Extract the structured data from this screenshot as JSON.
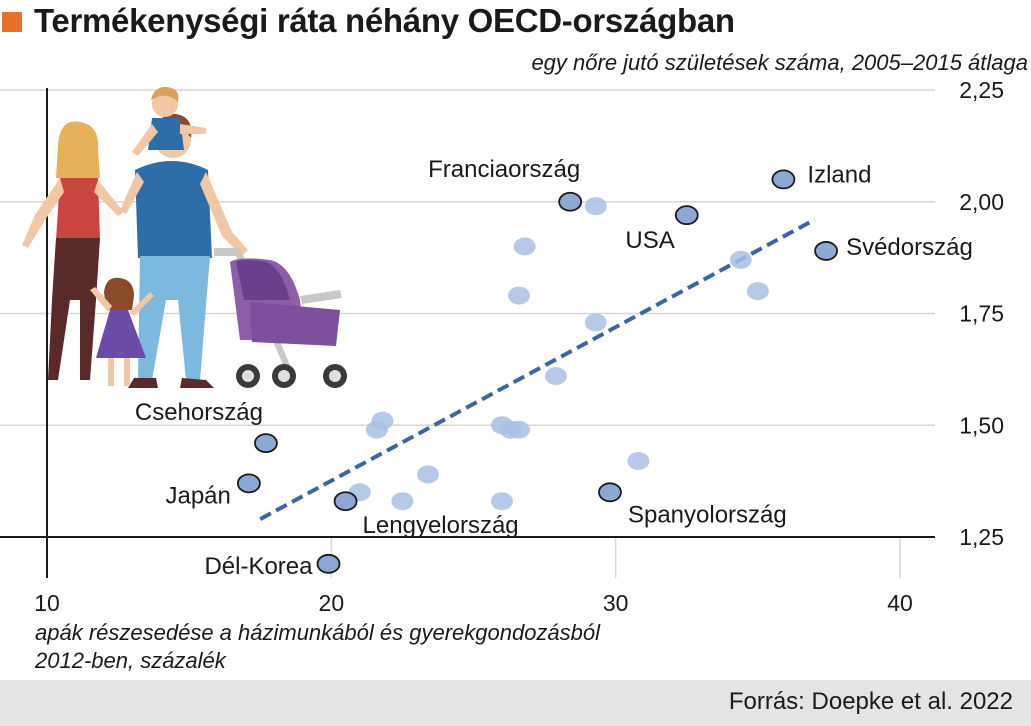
{
  "header": {
    "title": "Termékenységi ráta néhány OECD-országban"
  },
  "footer": {
    "source": "Forrás: Doepke et al. 2022"
  },
  "colors": {
    "accent": "#e8702a",
    "highlight_point": "#8ea8d6",
    "faded_point": "#a9bfe4",
    "trend_line": "#3a65a8",
    "footer_bg": "#e4e4e4"
  },
  "illustration": {
    "icon": "family-with-stroller-icon"
  },
  "chart_data": {
    "type": "scatter",
    "ylabel": "egy nőre jutó születések száma, 2005–2015 átlaga",
    "xlabel_lines": [
      "apák részesedése a házimunkából és gyerekgondozásból",
      "2012-ben, százalék"
    ],
    "xlim": [
      10,
      43
    ],
    "ylim": [
      1.23,
      2.26
    ],
    "x_ticks": [
      10,
      20,
      30,
      40
    ],
    "y_ticks": [
      1.25,
      1.5,
      1.75,
      2.0,
      2.25
    ],
    "x_tick_labels": [
      "10",
      "20",
      "30",
      "40"
    ],
    "y_tick_labels": [
      "1,25",
      "1,50",
      "1,75",
      "2,00",
      "2,25"
    ],
    "grid": "horizontal",
    "labeled_points": [
      {
        "label": "Izland",
        "x": 35.9,
        "y": 2.05
      },
      {
        "label": "Franciaország",
        "x": 28.4,
        "y": 2.0
      },
      {
        "label": "USA",
        "x": 32.5,
        "y": 1.97
      },
      {
        "label": "Svédország",
        "x": 37.4,
        "y": 1.89
      },
      {
        "label": "Csehország",
        "x": 17.7,
        "y": 1.46
      },
      {
        "label": "Japán",
        "x": 17.1,
        "y": 1.37
      },
      {
        "label": "Spanyolország",
        "x": 29.8,
        "y": 1.35
      },
      {
        "label": "Lengyelország",
        "x": 20.5,
        "y": 1.33
      },
      {
        "label": "Dél-Korea",
        "x": 19.9,
        "y": 1.19
      }
    ],
    "other_points": [
      {
        "x": 29.3,
        "y": 1.99
      },
      {
        "x": 26.8,
        "y": 1.9
      },
      {
        "x": 34.4,
        "y": 1.87
      },
      {
        "x": 26.6,
        "y": 1.79
      },
      {
        "x": 35.0,
        "y": 1.8
      },
      {
        "x": 29.3,
        "y": 1.73
      },
      {
        "x": 27.9,
        "y": 1.61
      },
      {
        "x": 21.8,
        "y": 1.51
      },
      {
        "x": 21.6,
        "y": 1.49
      },
      {
        "x": 26.0,
        "y": 1.5
      },
      {
        "x": 26.3,
        "y": 1.49
      },
      {
        "x": 26.6,
        "y": 1.49
      },
      {
        "x": 23.4,
        "y": 1.39
      },
      {
        "x": 30.8,
        "y": 1.42
      },
      {
        "x": 21.0,
        "y": 1.35
      },
      {
        "x": 22.5,
        "y": 1.33
      },
      {
        "x": 26.0,
        "y": 1.33
      }
    ],
    "trend": {
      "x": [
        17.5,
        37.0
      ],
      "y": [
        1.29,
        1.96
      ]
    }
  }
}
